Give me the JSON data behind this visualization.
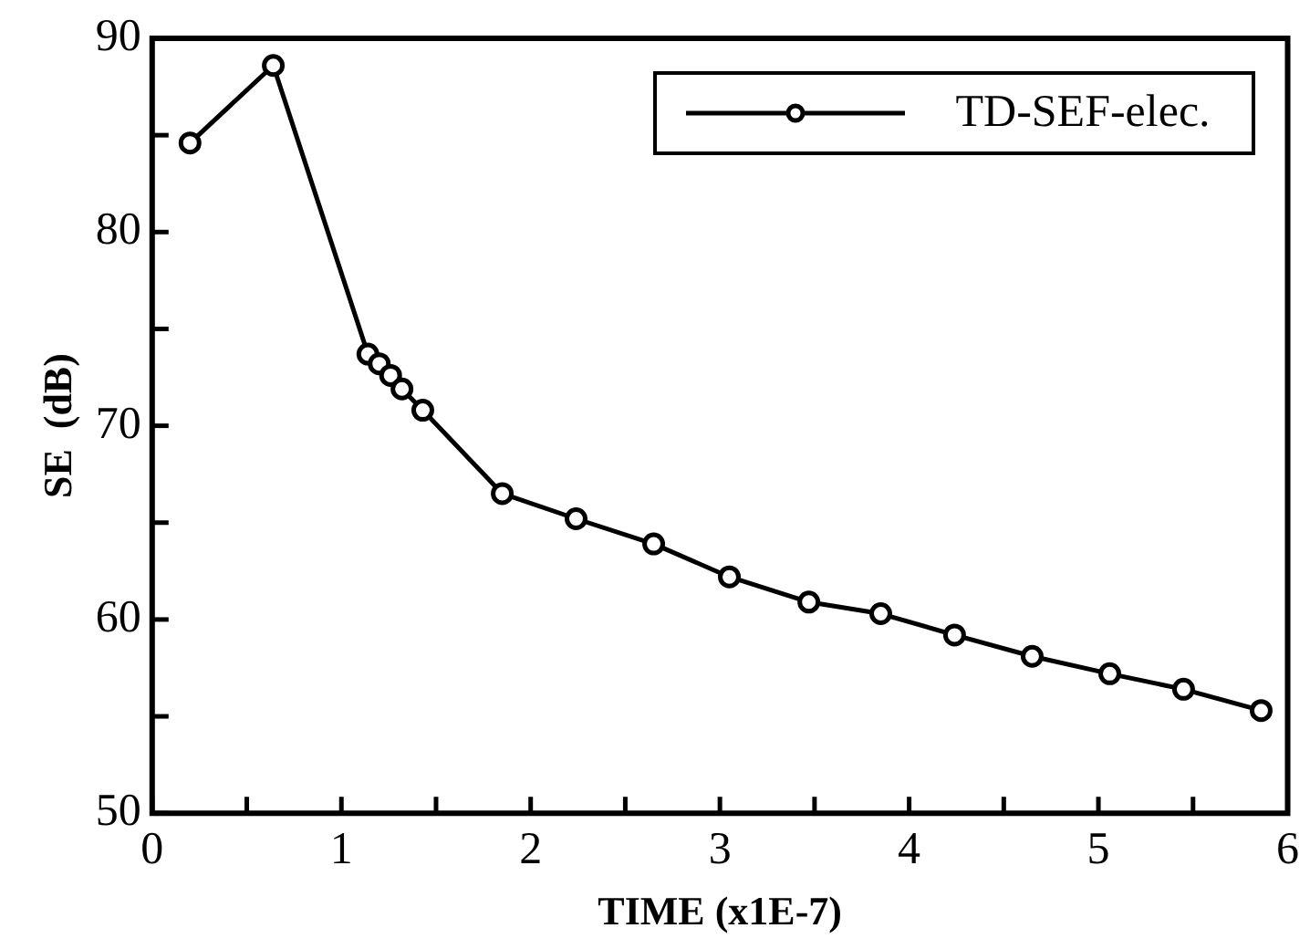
{
  "chart_data": {
    "type": "line",
    "xlabel": "TIME (x1E-7)",
    "ylabel": "SE  (dB)",
    "xlim": [
      0,
      6
    ],
    "xticks": [
      0,
      {
        "value": 0.5,
        "label": null
      },
      1,
      {
        "value": 1.5,
        "label": null
      },
      2,
      {
        "value": 2.5,
        "label": null
      },
      3,
      {
        "value": 3.5,
        "label": null
      },
      4,
      {
        "value": 4.5,
        "label": null
      },
      5,
      {
        "value": 5.5,
        "label": null
      },
      6
    ],
    "ylim": [
      50,
      90
    ],
    "yticks": [
      50,
      {
        "value": 55,
        "label": null
      },
      60,
      {
        "value": 65,
        "label": null
      },
      70,
      {
        "value": 75,
        "label": null
      },
      80,
      {
        "value": 85,
        "label": null
      },
      90
    ],
    "grid": false,
    "legend": "top right",
    "marker": "circle",
    "line_style": "solid",
    "series": [
      {
        "name": "TD-SEF-elec.",
        "color": "#000000",
        "x": [
          0.2,
          0.64,
          1.14,
          1.2,
          1.26,
          1.32,
          1.43,
          1.85,
          2.24,
          2.65,
          3.05,
          3.47,
          3.85,
          4.24,
          4.65,
          5.06,
          5.45,
          5.86
        ],
        "values": [
          84.6,
          88.6,
          73.7,
          73.2,
          72.6,
          71.9,
          70.8,
          66.5,
          65.2,
          63.9,
          62.2,
          60.9,
          60.3,
          59.2,
          58.1,
          57.2,
          56.4,
          55.3
        ]
      }
    ]
  }
}
